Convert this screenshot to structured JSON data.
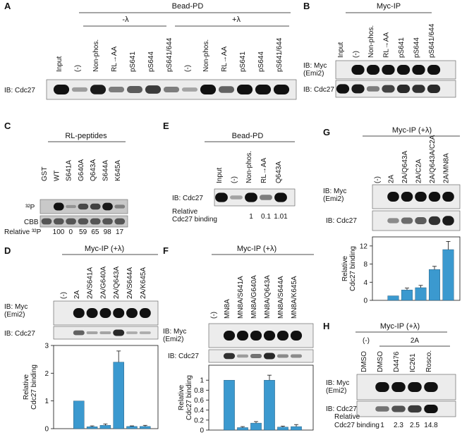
{
  "panels": {
    "A": {
      "letter": "A",
      "header": "Bead-PD",
      "group_minus": "-λ",
      "group_plus": "+λ",
      "lanes": [
        "Input",
        "(-)",
        "Non-phos.",
        "RL→AA",
        "pS641",
        "pS644",
        "pS641/644",
        "(-)",
        "Non-phos.",
        "RL→AA",
        "pS641",
        "pS644",
        "pS641/644"
      ],
      "blots": [
        {
          "label": "IB: Cdc27",
          "bands": [
            1.0,
            0.15,
            0.95,
            0.35,
            0.55,
            0.75,
            0.35,
            0.1,
            1.0,
            0.5,
            1.0,
            1.0,
            1.0
          ]
        }
      ]
    },
    "B": {
      "letter": "B",
      "header": "Myc-IP",
      "lanes": [
        "Input",
        "(-)",
        "Non-phos.",
        "RL→AA",
        "pS641",
        "pS644",
        "pS641/644"
      ],
      "blots": [
        {
          "label": "IB: Myc\n(Emi2)",
          "bands": [
            0.0,
            1.0,
            1.0,
            1.0,
            1.0,
            1.0,
            1.0
          ]
        },
        {
          "label": "IB: Cdc27",
          "bands": [
            1.0,
            0.95,
            0.35,
            0.7,
            0.85,
            0.8,
            0.85
          ]
        }
      ]
    },
    "C": {
      "letter": "C",
      "header": "RL-peptides",
      "lanes": [
        "GST",
        "WT",
        "S641A",
        "G640A",
        "Q643A",
        "S644A",
        "K645A"
      ],
      "blots": [
        {
          "label": "³²P",
          "bands": [
            0.0,
            1.0,
            0.05,
            0.6,
            0.65,
            0.95,
            0.2
          ]
        },
        {
          "label": "CBB",
          "bands": [
            1.0,
            1.0,
            1.0,
            1.0,
            1.0,
            1.0,
            1.0
          ]
        }
      ],
      "relative_label": "Relative ³²P",
      "relative_values": [
        "100",
        "0",
        "59",
        "65",
        "98",
        "17"
      ]
    },
    "D": {
      "letter": "D",
      "header": "Myc-IP (+λ)",
      "lanes": [
        "(-)",
        "2A",
        "2A/S641A",
        "2A/G640A",
        "2A/Q643A",
        "2A/S644A",
        "2A/K645A"
      ],
      "blots": [
        {
          "label": "IB: Myc\n(Emi2)",
          "bands": [
            0.0,
            1.0,
            1.0,
            1.0,
            1.0,
            1.0,
            1.0
          ]
        },
        {
          "label": "IB: Cdc27",
          "bands": [
            0.0,
            0.5,
            0.1,
            0.1,
            0.85,
            0.05,
            0.05
          ]
        }
      ]
    },
    "E": {
      "letter": "E",
      "header": "Bead-PD",
      "lanes": [
        "Input",
        "(-)",
        "Non-phos.",
        "RL→AA",
        "Q643A"
      ],
      "blots": [
        {
          "label": "IB: Cdc27",
          "bands": [
            1.0,
            0.1,
            1.0,
            0.35,
            1.0
          ]
        }
      ],
      "relative_label": "Relative\nCdc27 binding",
      "relative_values": [
        "1",
        "0.1",
        "1.01"
      ]
    },
    "F": {
      "letter": "F",
      "header": "Myc-IP (+λ)",
      "lanes": [
        "(-)",
        "MN8A",
        "MN8A/S641A",
        "MN8A/G640A",
        "MN8A/Q643A",
        "MN8A/S644A",
        "MN8A/K645A"
      ],
      "blots": [
        {
          "label": "IB: Myc\n(Emi2)",
          "bands": [
            0.0,
            1.0,
            1.0,
            1.0,
            1.0,
            1.0,
            1.0
          ]
        },
        {
          "label": "IB: Cdc27",
          "bands": [
            0.0,
            0.8,
            0.15,
            0.4,
            0.85,
            0.25,
            0.25
          ]
        }
      ]
    },
    "G": {
      "letter": "G",
      "header": "Myc-IP (+λ)",
      "lanes": [
        "(-)",
        "2A",
        "2A/Q643A",
        "2A/C2A",
        "2A/Q643A/C2A",
        "2A/MN8A"
      ],
      "blots": [
        {
          "label": "IB: Myc\n(Emi2)",
          "bands": [
            0.0,
            1.0,
            1.0,
            1.0,
            1.0,
            1.0
          ]
        },
        {
          "label": "IB: Cdc27",
          "bands": [
            0.0,
            0.25,
            0.45,
            0.55,
            0.8,
            0.95
          ]
        }
      ]
    },
    "H": {
      "letter": "H",
      "header": "Myc-IP (+λ)",
      "subheader": "2A",
      "lanes": [
        "DMSO",
        "DMSO",
        "D4476",
        "IC261",
        "Rosco."
      ],
      "neg_label": "(-)",
      "blots": [
        {
          "label": "IB: Myc\n(Emi2)",
          "bands": [
            0.0,
            1.0,
            1.0,
            1.0,
            1.0
          ]
        },
        {
          "label": "IB: Cdc27",
          "bands": [
            0.0,
            0.4,
            0.6,
            0.75,
            1.0
          ]
        }
      ],
      "relative_label": "Relative\nCdc27 binding",
      "relative_values": [
        "1",
        "2.3",
        "2.5",
        "14.8"
      ]
    }
  },
  "chart_data": [
    {
      "type": "bar",
      "panel": "D",
      "ylabel": "Relative\nCdc27 binding",
      "ylim": [
        0,
        3
      ],
      "yticks": [
        0,
        1,
        2,
        3
      ],
      "categories": [
        "(-)",
        "2A",
        "2A/S641A",
        "2A/G640A",
        "2A/Q643A",
        "2A/S644A",
        "2A/K645A"
      ],
      "values": [
        null,
        1.0,
        0.07,
        0.12,
        2.4,
        0.08,
        0.08
      ],
      "errors": [
        null,
        0,
        0.03,
        0.05,
        0.4,
        0.02,
        0.04
      ]
    },
    {
      "type": "bar",
      "panel": "F",
      "ylabel": "Relative\nCdc27 binding",
      "ylim": [
        0,
        1.3
      ],
      "yticks": [
        0,
        0.2,
        0.4,
        0.6,
        0.8,
        1
      ],
      "categories": [
        "(-)",
        "MN8A",
        "MN8A/S641A",
        "MN8A/G640A",
        "MN8A/Q643A",
        "MN8A/S644A",
        "MN8A/K645A"
      ],
      "values": [
        null,
        1.0,
        0.05,
        0.14,
        1.0,
        0.06,
        0.07
      ],
      "errors": [
        null,
        0,
        0.02,
        0.03,
        0.1,
        0.02,
        0.04
      ]
    },
    {
      "type": "bar",
      "panel": "G",
      "ylabel": "Relative\nCdc27 binding",
      "ylim": [
        0,
        14
      ],
      "yticks": [
        0,
        4,
        8,
        12
      ],
      "categories": [
        "(-)",
        "2A",
        "2A/Q643A",
        "2A/C2A",
        "2A/Q643A/C2A",
        "2A/MN8A"
      ],
      "values": [
        null,
        1.0,
        2.3,
        2.8,
        6.8,
        11.2
      ],
      "errors": [
        null,
        0,
        0.4,
        0.5,
        0.7,
        1.8
      ]
    }
  ]
}
